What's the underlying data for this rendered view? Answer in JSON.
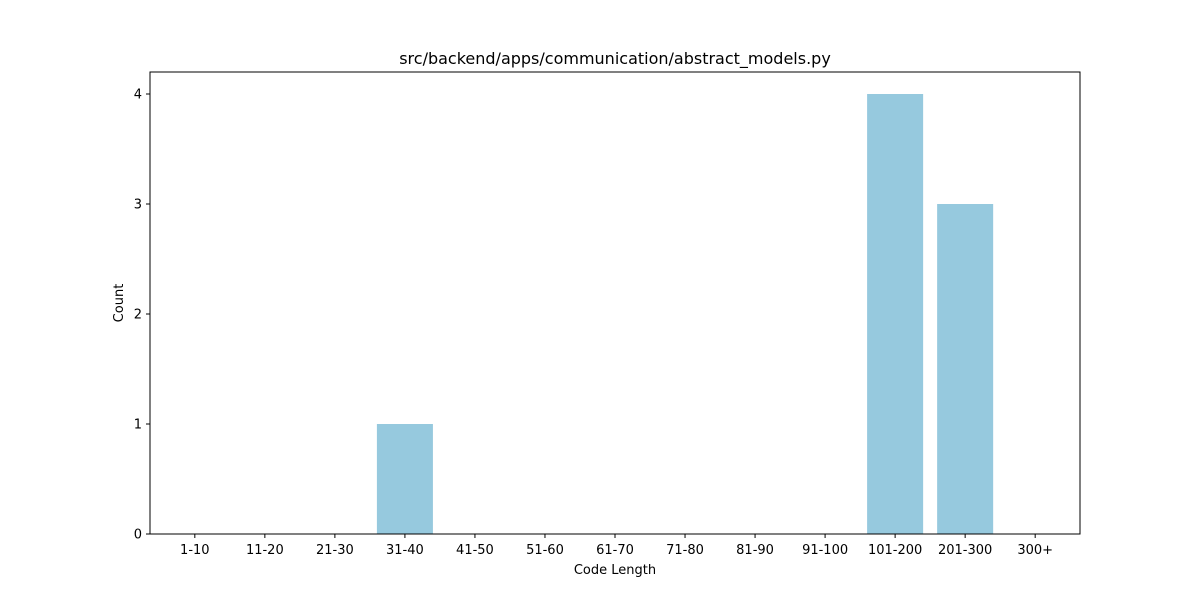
{
  "chart_data": {
    "type": "bar",
    "title": "src/backend/apps/communication/abstract_models.py",
    "xlabel": "Code Length",
    "ylabel": "Count",
    "categories": [
      "1-10",
      "11-20",
      "21-30",
      "31-40",
      "41-50",
      "51-60",
      "61-70",
      "71-80",
      "81-90",
      "91-100",
      "101-200",
      "201-300",
      "300+"
    ],
    "values": [
      0,
      0,
      0,
      1,
      0,
      0,
      0,
      0,
      0,
      0,
      4,
      3,
      0
    ],
    "ylim": [
      0,
      4.2
    ],
    "yticks": [
      0,
      1,
      2,
      3,
      4
    ],
    "grid": false,
    "bar_color": "#96c9de"
  }
}
